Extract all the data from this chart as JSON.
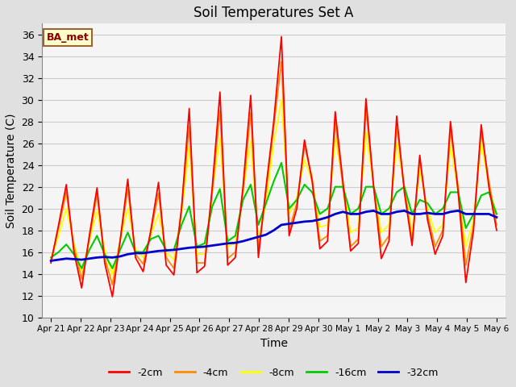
{
  "title": "Soil Temperatures Set A",
  "xlabel": "Time",
  "ylabel": "Soil Temperature (C)",
  "ylim": [
    10,
    37
  ],
  "yticks": [
    10,
    12,
    14,
    16,
    18,
    20,
    22,
    24,
    26,
    28,
    30,
    32,
    34,
    36
  ],
  "annotation": "BA_met",
  "fig_bg": "#e0e0e0",
  "plot_bg": "#f5f5f5",
  "colors": {
    "-2cm": "#ff0000",
    "-4cm": "#ff8c00",
    "-8cm": "#ffff00",
    "-16cm": "#00cc00",
    "-32cm": "#0000cc"
  },
  "x_labels": [
    "Apr 21",
    "Apr 22",
    "Apr 23",
    "Apr 24",
    "Apr 25",
    "Apr 26",
    "Apr 27",
    "Apr 28",
    "Apr 29",
    "Apr 30",
    "May 1",
    "May 2",
    "May 3",
    "May 4",
    "May 5",
    "May 6"
  ],
  "n_days": 16,
  "series": {
    "-2cm": [
      15.0,
      18.5,
      22.2,
      16.0,
      12.7,
      17.5,
      21.9,
      15.0,
      11.9,
      17.0,
      22.7,
      15.5,
      14.2,
      18.0,
      22.4,
      14.8,
      13.9,
      20.0,
      29.2,
      14.1,
      14.7,
      22.0,
      30.7,
      14.8,
      15.5,
      22.0,
      30.4,
      15.5,
      22.0,
      28.0,
      35.8,
      17.5,
      20.0,
      26.3,
      22.5,
      16.3,
      17.0,
      28.9,
      22.5,
      16.1,
      16.8,
      30.1,
      22.0,
      15.4,
      17.0,
      28.5,
      21.5,
      16.6,
      24.9,
      19.0,
      15.8,
      17.5,
      28.0,
      21.5,
      13.2,
      18.0,
      27.7,
      22.0,
      18.0
    ],
    "-4cm": [
      15.2,
      18.2,
      21.5,
      16.5,
      13.5,
      17.2,
      21.3,
      15.5,
      13.0,
      17.0,
      21.8,
      15.8,
      14.9,
      17.8,
      21.4,
      15.5,
      14.5,
      20.0,
      27.5,
      15.0,
      15.0,
      21.5,
      29.0,
      15.4,
      16.0,
      21.5,
      28.8,
      16.2,
      21.5,
      27.5,
      33.5,
      18.0,
      20.5,
      25.8,
      22.8,
      17.0,
      17.5,
      28.0,
      22.0,
      16.5,
      17.2,
      29.2,
      22.0,
      16.5,
      17.5,
      27.5,
      22.0,
      17.0,
      24.5,
      19.5,
      16.5,
      18.0,
      27.2,
      22.0,
      14.8,
      18.5,
      27.1,
      22.5,
      18.5
    ],
    "-8cm": [
      15.3,
      17.5,
      20.0,
      16.8,
      14.2,
      17.0,
      19.8,
      16.2,
      13.9,
      17.0,
      20.0,
      16.3,
      15.5,
      17.5,
      19.5,
      16.0,
      15.3,
      19.5,
      25.6,
      15.8,
      15.8,
      21.5,
      26.5,
      16.5,
      16.8,
      21.5,
      26.2,
      17.0,
      20.5,
      26.0,
      30.0,
      19.5,
      21.0,
      24.5,
      22.5,
      18.3,
      18.5,
      26.5,
      22.5,
      17.8,
      18.2,
      27.0,
      22.0,
      17.8,
      18.5,
      26.0,
      22.0,
      17.8,
      23.5,
      20.0,
      17.8,
      18.5,
      25.8,
      21.5,
      16.5,
      19.0,
      26.0,
      22.0,
      19.5
    ],
    "-16cm": [
      15.5,
      16.0,
      16.7,
      15.8,
      14.5,
      16.2,
      17.5,
      15.8,
      14.5,
      16.2,
      17.8,
      16.0,
      16.0,
      17.2,
      17.5,
      16.2,
      16.2,
      18.5,
      20.2,
      16.5,
      16.8,
      20.2,
      21.8,
      17.0,
      17.5,
      20.8,
      22.2,
      18.5,
      20.5,
      22.5,
      24.2,
      20.0,
      20.8,
      22.2,
      21.5,
      19.5,
      20.0,
      22.0,
      22.0,
      19.5,
      20.0,
      22.0,
      22.0,
      19.5,
      20.0,
      21.5,
      22.0,
      19.5,
      20.8,
      20.5,
      19.5,
      20.0,
      21.5,
      21.5,
      18.2,
      19.5,
      21.2,
      21.5,
      19.5
    ],
    "-32cm": [
      15.2,
      15.3,
      15.4,
      15.35,
      15.3,
      15.4,
      15.5,
      15.55,
      15.5,
      15.6,
      15.8,
      15.9,
      15.9,
      16.0,
      16.1,
      16.15,
      16.2,
      16.3,
      16.4,
      16.45,
      16.5,
      16.6,
      16.7,
      16.8,
      16.85,
      17.0,
      17.2,
      17.4,
      17.6,
      18.0,
      18.5,
      18.6,
      18.7,
      18.8,
      18.85,
      19.0,
      19.2,
      19.5,
      19.7,
      19.5,
      19.5,
      19.7,
      19.8,
      19.5,
      19.5,
      19.7,
      19.8,
      19.5,
      19.5,
      19.6,
      19.5,
      19.5,
      19.7,
      19.8,
      19.5,
      19.5,
      19.5,
      19.5,
      19.2
    ]
  }
}
